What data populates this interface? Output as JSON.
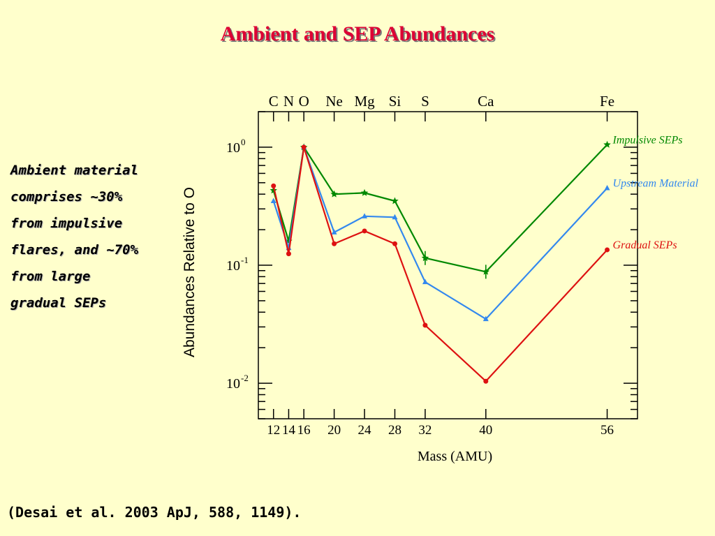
{
  "slide": {
    "title": "Ambient and SEP Abundances",
    "side_text": [
      "Ambient material",
      "comprises ~30%",
      "from impulsive",
      "flares, and ~70%",
      "from large",
      "gradual SEPs"
    ],
    "citation": "(Desai et al. 2003 ApJ, 588, 1149)."
  },
  "chart_data": {
    "type": "line",
    "xlabel": "Mass (AMU)",
    "ylabel": "Abundances Relative to O",
    "yscale": "log",
    "xlim": [
      10,
      60
    ],
    "ylim": [
      0.005,
      2.0
    ],
    "x_tick_values": [
      12,
      14,
      16,
      20,
      24,
      28,
      32,
      40,
      56
    ],
    "x_tick_labels": [
      "12",
      "14",
      "16",
      "20",
      "24",
      "28",
      "32",
      "40",
      "56"
    ],
    "y_ticks": [
      {
        "value": 1,
        "base": "10",
        "exp": "0"
      },
      {
        "value": 0.1,
        "base": "10",
        "exp": "-1"
      },
      {
        "value": 0.01,
        "base": "10",
        "exp": "-2"
      }
    ],
    "top_axis_elements": [
      {
        "name": "C",
        "x": 12
      },
      {
        "name": "N",
        "x": 14
      },
      {
        "name": "O",
        "x": 16
      },
      {
        "name": "Ne",
        "x": 20
      },
      {
        "name": "Mg",
        "x": 24
      },
      {
        "name": "Si",
        "x": 28
      },
      {
        "name": "S",
        "x": 32
      },
      {
        "name": "Ca",
        "x": 40
      },
      {
        "name": "Fe",
        "x": 56
      }
    ],
    "x": [
      12,
      14,
      16,
      20,
      24,
      28,
      32,
      40,
      56
    ],
    "series": [
      {
        "name": "Impulsive SEPs",
        "color": "#008800",
        "marker": "star",
        "values": [
          0.43,
          0.16,
          1.0,
          0.4,
          0.41,
          0.35,
          0.115,
          0.088,
          1.05
        ]
      },
      {
        "name": "Upstream Material",
        "color": "#3388ee",
        "marker": "triangle",
        "values": [
          0.35,
          0.14,
          1.0,
          0.19,
          0.26,
          0.255,
          0.072,
          0.035,
          0.45
        ]
      },
      {
        "name": "Gradual SEPs",
        "color": "#dd1111",
        "marker": "circle",
        "values": [
          0.47,
          0.125,
          1.0,
          0.152,
          0.195,
          0.152,
          0.031,
          0.0104,
          0.135
        ]
      }
    ]
  }
}
